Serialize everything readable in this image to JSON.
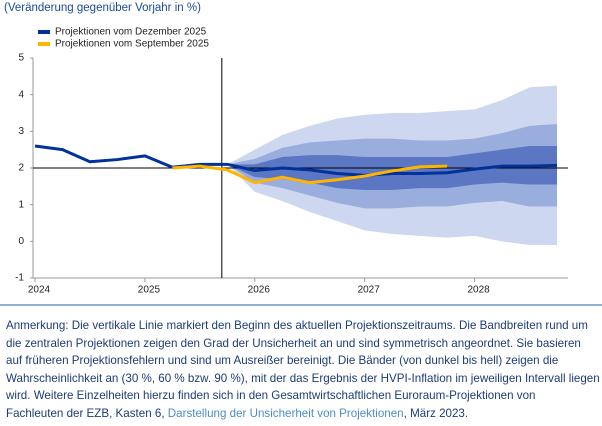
{
  "chart_data": {
    "type": "fan",
    "subtitle": "(Veränderung gegenüber Vorjahr in %)",
    "x": [
      2024.0,
      2024.25,
      2024.5,
      2024.75,
      2025.0,
      2025.25,
      2025.5,
      2025.75,
      2026.0,
      2026.25,
      2026.5,
      2026.75,
      2027.0,
      2027.25,
      2027.5,
      2027.75,
      2028.0,
      2028.25,
      2028.5,
      2028.75
    ],
    "series": [
      {
        "name": "Projektionen vom Dezember 2025",
        "color": "#003299",
        "values": [
          2.6,
          2.5,
          2.17,
          2.23,
          2.33,
          2.02,
          2.1,
          2.1,
          1.93,
          2.0,
          1.95,
          1.85,
          1.8,
          1.85,
          1.85,
          1.87,
          1.97,
          2.05,
          2.05,
          2.07
        ]
      },
      {
        "name": "Projektionen vom September 2025",
        "color": "#ffb400",
        "values": [
          null,
          null,
          null,
          null,
          null,
          2.0,
          2.05,
          1.95,
          1.6,
          1.75,
          1.6,
          1.68,
          1.78,
          1.92,
          2.03,
          2.05,
          null,
          null,
          null,
          null
        ]
      }
    ],
    "bands": [
      {
        "color": "#cdd7ef",
        "x": [
          2025.75,
          2026.0,
          2026.25,
          2026.5,
          2026.75,
          2027.0,
          2027.25,
          2027.5,
          2027.75,
          2028.0,
          2028.25,
          2028.5,
          2028.75
        ],
        "upper": [
          2.1,
          2.5,
          2.9,
          3.15,
          3.35,
          3.45,
          3.5,
          3.5,
          3.55,
          3.6,
          3.85,
          4.2,
          4.25
        ],
        "lower": [
          2.1,
          1.35,
          1.1,
          0.8,
          0.55,
          0.3,
          0.2,
          0.15,
          0.1,
          0.15,
          0.0,
          -0.1,
          -0.1
        ]
      },
      {
        "color": "#9aaedd",
        "x": [
          2025.75,
          2026.0,
          2026.25,
          2026.5,
          2026.75,
          2027.0,
          2027.25,
          2027.5,
          2027.75,
          2028.0,
          2028.25,
          2028.5,
          2028.75
        ],
        "upper": [
          2.1,
          2.25,
          2.55,
          2.7,
          2.75,
          2.8,
          2.8,
          2.75,
          2.75,
          2.8,
          2.95,
          3.15,
          3.2
        ],
        "lower": [
          2.1,
          1.6,
          1.45,
          1.25,
          1.05,
          0.9,
          0.9,
          0.95,
          0.95,
          1.05,
          1.1,
          0.95,
          0.95
        ]
      },
      {
        "color": "#5b77c4",
        "x": [
          2025.75,
          2026.0,
          2026.25,
          2026.5,
          2026.75,
          2027.0,
          2027.25,
          2027.5,
          2027.75,
          2028.0,
          2028.25,
          2028.5,
          2028.75
        ],
        "upper": [
          2.1,
          2.1,
          2.3,
          2.35,
          2.35,
          2.3,
          2.3,
          2.3,
          2.3,
          2.4,
          2.5,
          2.6,
          2.6
        ],
        "lower": [
          2.1,
          1.75,
          1.7,
          1.6,
          1.45,
          1.4,
          1.4,
          1.45,
          1.45,
          1.55,
          1.6,
          1.55,
          1.55
        ]
      }
    ],
    "vertical_line": 2025.7,
    "horizontal_line": 2,
    "xlim": [
      2024,
      2028.85
    ],
    "xticks": [
      2024,
      2025,
      2026,
      2027,
      2028
    ],
    "ylim": [
      -1,
      5
    ],
    "yticks": [
      -1,
      0,
      1,
      2,
      3,
      4,
      5
    ],
    "note": {
      "lines": [
        "Anmerkung: Die vertikale Linie markiert den Beginn des aktuellen Projektionszeitraums. Die Bandbreiten rund um",
        "die zentralen Projektionen zeigen den Grad der Unsicherheit an und sind symmetrisch angeordnet. Sie basieren",
        "auf früheren Projektionsfehlern und sind um Ausreißer bereinigt. Die Bänder (von dunkel bis hell) zeigen die",
        "Wahrscheinlichkeit an (30 %, 60 % bzw. 90 %), mit der das Ergebnis der HVPI-Inflation im jeweiligen Intervall liegen",
        "wird. Weitere Einzelheiten hierzu finden sich in den Gesamtwirtschaftlichen Euroraum-Projektionen von"
      ],
      "last_line": [
        "Fachleuten der EZB, Kasten 6, ",
        "Darstellung der Unsicherheit von Projektionen",
        ", März 2023."
      ]
    }
  }
}
